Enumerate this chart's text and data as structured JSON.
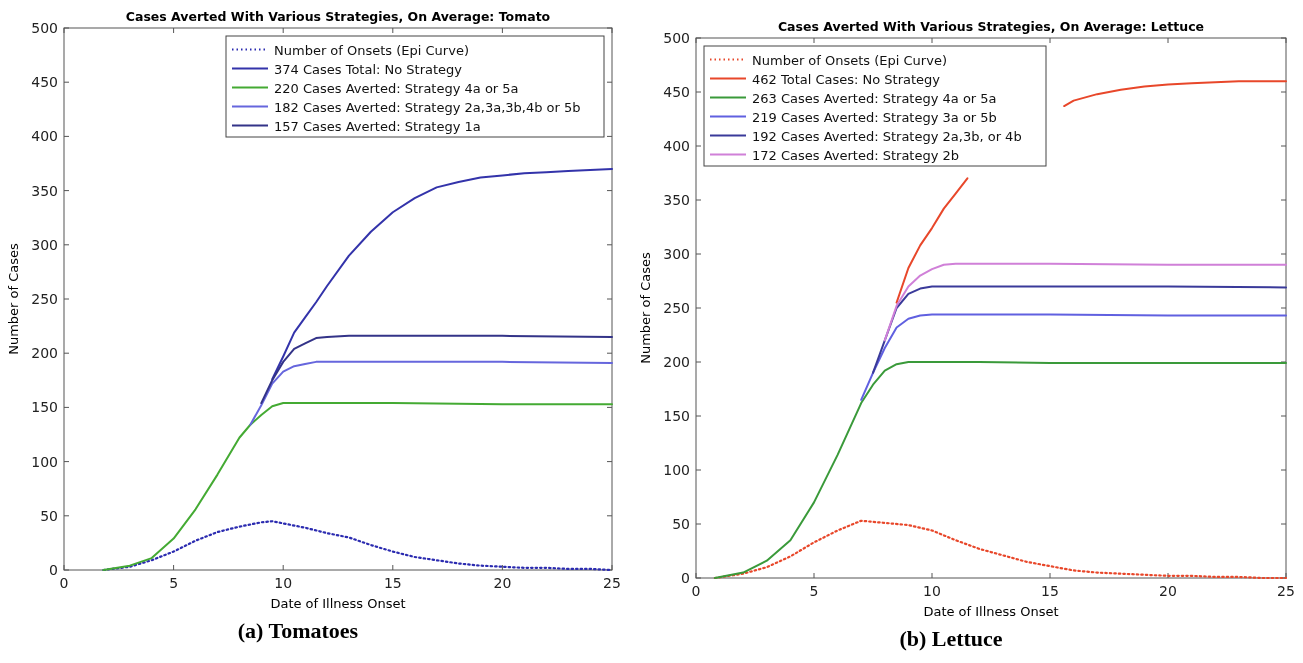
{
  "chart_data": [
    {
      "type": "line",
      "title": "Cases Averted With Various Strategies, On Average: Tomato",
      "xlabel": "Date of Illness Onset",
      "ylabel": "Number of Cases",
      "annotations": [
        "(a) Tomatoes"
      ],
      "xlim": [
        0,
        25
      ],
      "xticks": [
        0,
        5,
        10,
        15,
        20,
        25
      ],
      "ylim": [
        0,
        500
      ],
      "yticks": [
        0,
        50,
        100,
        150,
        200,
        250,
        300,
        350,
        400,
        450,
        500
      ],
      "grid": false,
      "legend": "top right",
      "marker": "none",
      "series": [
        {
          "name": "Number of Onsets (Epi Curve)",
          "color": "#2b2bb0",
          "line_style": "dotted",
          "x": [
            1.8,
            3,
            4,
            5,
            6,
            7,
            8,
            9,
            9.5,
            10,
            11,
            12,
            13,
            14,
            15,
            16,
            17,
            18,
            19,
            20,
            21,
            22,
            23,
            24,
            25
          ],
          "values": [
            0,
            3,
            9,
            17,
            27,
            35,
            40,
            44,
            45,
            43,
            39,
            34,
            30,
            23,
            17,
            12,
            9,
            6,
            4,
            3,
            2,
            2,
            1,
            1,
            0
          ]
        },
        {
          "name": "374 Cases Total: No Strategy",
          "color": "#3333aa",
          "line_style": "solid",
          "x": [
            9.5,
            10,
            10.5,
            11,
            11.5,
            12,
            13,
            14,
            15,
            16,
            17,
            18,
            19,
            20,
            21,
            22,
            23,
            24,
            25
          ],
          "values": [
            176,
            197,
            219,
            233,
            247,
            262,
            290,
            312,
            330,
            343,
            353,
            358,
            362,
            364,
            366,
            367,
            368,
            369,
            370
          ]
        },
        {
          "name": "220 Cases Averted: Strategy 4a or 5a",
          "color": "#44aa33",
          "line_style": "solid",
          "x": [
            1.8,
            3,
            4,
            5,
            6,
            7,
            8,
            8.5,
            9,
            9.5,
            10,
            12,
            15,
            20,
            25
          ],
          "values": [
            0,
            4,
            11,
            29,
            56,
            88,
            122,
            134,
            143,
            151,
            154,
            154,
            154,
            153,
            153
          ]
        },
        {
          "name": "182 Cases Averted: Strategy 2a,3a,3b,4b or 5b",
          "color": "#6666dd",
          "line_style": "solid",
          "x": [
            8.5,
            9,
            9.5,
            10,
            10.5,
            11,
            11.5,
            12,
            15,
            20,
            25
          ],
          "values": [
            134,
            152,
            172,
            183,
            188,
            190,
            192,
            192,
            192,
            192,
            191
          ]
        },
        {
          "name": "157 Cases Averted: Strategy 1a",
          "color": "#333388",
          "line_style": "solid",
          "x": [
            9,
            9.5,
            10,
            10.5,
            11,
            11.5,
            12,
            13,
            15,
            20,
            25
          ],
          "values": [
            154,
            175,
            192,
            204,
            209,
            214,
            215,
            216,
            216,
            216,
            215
          ]
        }
      ]
    },
    {
      "type": "line",
      "title": "Cases Averted With Various Strategies, On Average: Lettuce",
      "xlabel": "Date of Illness Onset",
      "ylabel": "Number of Cases",
      "annotations": [
        "(b) Lettuce"
      ],
      "xlim": [
        0,
        25
      ],
      "xticks": [
        0,
        5,
        10,
        15,
        20,
        25
      ],
      "ylim": [
        0,
        500
      ],
      "yticks": [
        0,
        50,
        100,
        150,
        200,
        250,
        300,
        350,
        400,
        450,
        500
      ],
      "grid": false,
      "legend": "top left",
      "marker": "none",
      "series": [
        {
          "name": "Number of Onsets (Epi Curve)",
          "color": "#e8472a",
          "line_style": "dotted",
          "x": [
            0.8,
            2,
            3,
            4,
            5,
            6,
            7,
            8,
            9,
            10,
            11,
            12,
            13,
            14,
            15,
            16,
            17,
            18,
            19,
            20,
            21,
            22,
            23,
            24,
            25
          ],
          "values": [
            0,
            4,
            10,
            20,
            33,
            44,
            53,
            51,
            49,
            44,
            35,
            27,
            21,
            15,
            11,
            7,
            5,
            4,
            3,
            2,
            2,
            1,
            1,
            0,
            0
          ]
        },
        {
          "name": "462 Total Cases: No Strategy",
          "color": "#e8472a",
          "line_style": "solid",
          "x": [
            8.5,
            9,
            9.5,
            10,
            10.5,
            11,
            11.5,
            13.5,
            15.6,
            16,
            17,
            18,
            19,
            20,
            21,
            22,
            23,
            24,
            25
          ],
          "values": [
            255,
            287,
            308,
            324,
            342,
            356,
            370,
            null,
            437,
            442,
            448,
            452,
            455,
            457,
            458,
            459,
            460,
            460,
            460
          ]
        },
        {
          "name": "263 Cases Averted: Strategy 4a or 5a",
          "color": "#3a9a3a",
          "line_style": "solid",
          "x": [
            0.8,
            2,
            3,
            4,
            5,
            6,
            7,
            7.5,
            8,
            8.5,
            9,
            12,
            15,
            20,
            25
          ],
          "values": [
            0,
            5,
            16,
            35,
            70,
            114,
            162,
            179,
            192,
            198,
            200,
            200,
            199,
            199,
            199
          ]
        },
        {
          "name": "219 Cases Averted: Strategy 3a or 5b",
          "color": "#6060e0",
          "line_style": "solid",
          "x": [
            7,
            7.5,
            8,
            8.5,
            9,
            9.5,
            10,
            15,
            20,
            25
          ],
          "values": [
            165,
            190,
            213,
            232,
            240,
            243,
            244,
            244,
            243,
            243
          ]
        },
        {
          "name": "192 Cases Averted: Strategy 2a,3b, or 4b",
          "color": "#3a3a9a",
          "line_style": "solid",
          "x": [
            7.5,
            8,
            8.5,
            9,
            9.5,
            10,
            15,
            20,
            25
          ],
          "values": [
            190,
            220,
            250,
            263,
            268,
            270,
            270,
            270,
            269
          ]
        },
        {
          "name": "172 Cases Averted: Strategy 2b",
          "color": "#d080d8",
          "line_style": "solid",
          "x": [
            8,
            8.5,
            9,
            9.5,
            10,
            10.5,
            11,
            15,
            20,
            25
          ],
          "values": [
            220,
            252,
            270,
            280,
            286,
            290,
            291,
            291,
            290,
            290
          ]
        }
      ]
    }
  ]
}
